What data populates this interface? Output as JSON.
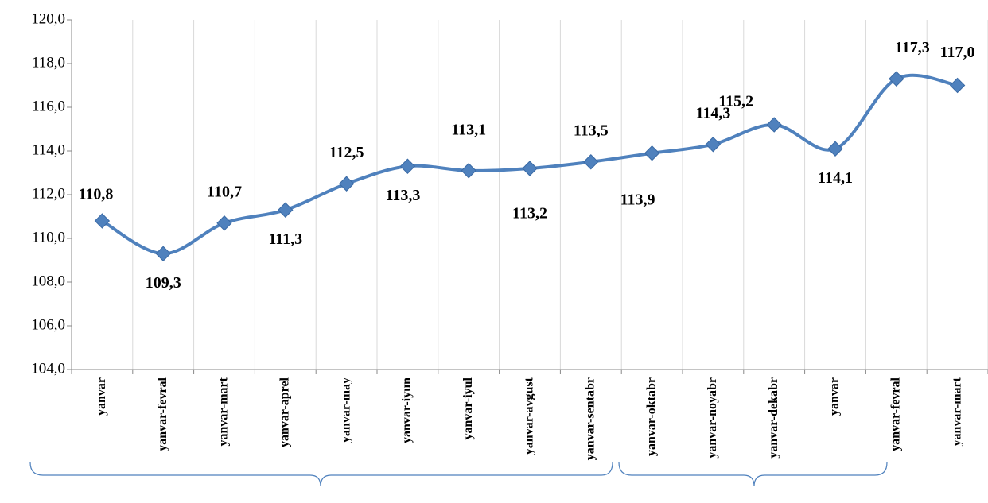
{
  "chart_data": {
    "type": "line",
    "categories": [
      "yanvar",
      "yanvar-fevral",
      "yanvar-mart",
      "yanvar-aprel",
      "yanvar-may",
      "yanvar-iyun",
      "yanvar-iyul",
      "yanvar-avgust",
      "yanvar-sentabr",
      "yanvar-oktabr",
      "yanvar-noyabr",
      "yanvar-dekabr",
      "yanvar",
      "yanvar-fevral",
      "yanvar-mart"
    ],
    "series": [
      {
        "color": "#4f81bd",
        "values": [
          110.8,
          109.3,
          110.7,
          111.3,
          112.5,
          113.3,
          113.1,
          113.2,
          113.5,
          113.9,
          114.3,
          115.2,
          114.1,
          117.3,
          117.0
        ],
        "value_labels": [
          "110,8",
          "109,3",
          "110,7",
          "111,3",
          "112,5",
          "113,3",
          "113,1",
          "113,2",
          "113,5",
          "113,9",
          "114,3",
          "115,2",
          "114,1",
          "117,3",
          "117,0"
        ]
      }
    ],
    "ylim": [
      104,
      120
    ],
    "yticks": [
      {
        "value": 104,
        "label": "104,0"
      },
      {
        "value": 106,
        "label": "106,0"
      },
      {
        "value": 108,
        "label": "108,0"
      },
      {
        "value": 110,
        "label": "110,0"
      },
      {
        "value": 112,
        "label": "112,0"
      },
      {
        "value": 114,
        "label": "114,0"
      },
      {
        "value": 116,
        "label": "116,0"
      },
      {
        "value": 118,
        "label": "118,0"
      },
      {
        "value": 120,
        "label": "120,0"
      }
    ],
    "xgrid": true,
    "smooth": true
  }
}
